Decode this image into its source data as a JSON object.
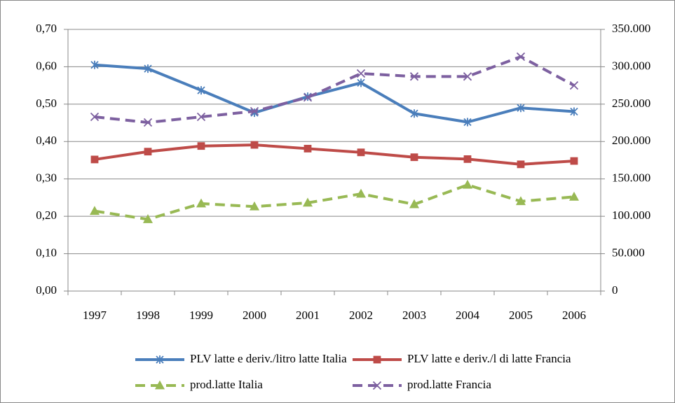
{
  "chart_data": {
    "type": "line",
    "categories": [
      "1997",
      "1998",
      "1999",
      "2000",
      "2001",
      "2002",
      "2003",
      "2004",
      "2005",
      "2006"
    ],
    "ylim": [
      0,
      0.7
    ],
    "yticks": [
      {
        "value": 0,
        "label": "0,00"
      },
      {
        "value": 0.1,
        "label": "0,10"
      },
      {
        "value": 0.2,
        "label": "0,20"
      },
      {
        "value": 0.3,
        "label": "0,30"
      },
      {
        "value": 0.4,
        "label": "0,40"
      },
      {
        "value": 0.5,
        "label": "0,50"
      },
      {
        "value": 0.6,
        "label": "0,60"
      },
      {
        "value": 0.7,
        "label": "0,70"
      }
    ],
    "y2lim": [
      0,
      350000
    ],
    "y2ticks": [
      0,
      {
        "value": 50000,
        "label": "50.000"
      },
      {
        "value": 100000,
        "label": "100.000"
      },
      {
        "value": 150000,
        "label": "150.000"
      },
      {
        "value": 200000,
        "label": "200.000"
      },
      {
        "value": 250000,
        "label": "250.000"
      },
      {
        "value": 300000,
        "label": "300.000"
      },
      {
        "value": 350000,
        "label": "350.000"
      }
    ],
    "grid": true,
    "legend": "bottom",
    "series": [
      {
        "name": "PLV latte e deriv./litro latte Italia",
        "color": "#4a7ebb",
        "marker": "star",
        "dashed": false,
        "values": [
          0.605,
          0.595,
          0.537,
          0.477,
          0.52,
          0.557,
          0.475,
          0.452,
          0.49,
          0.48
        ]
      },
      {
        "name": "PLV latte e deriv./l di latte Francia",
        "color": "#be4b48",
        "marker": "square",
        "dashed": false,
        "values": [
          0.352,
          0.373,
          0.388,
          0.391,
          0.381,
          0.371,
          0.358,
          0.353,
          0.339,
          0.348
        ]
      },
      {
        "name": "prod.latte Italia",
        "color": "#98b954",
        "marker": "triangle",
        "dashed": true,
        "axis": "y2",
        "values": [
          107000,
          96000,
          117000,
          113000,
          118000,
          130000,
          116000,
          142000,
          120000,
          126000
        ]
      },
      {
        "name": "prod.latte Francia",
        "color": "#7d60a0",
        "marker": "x",
        "dashed": true,
        "axis": "y2",
        "values": [
          233000,
          225500,
          233000,
          240500,
          259000,
          291000,
          287000,
          287000,
          313500,
          275000
        ]
      }
    ]
  }
}
